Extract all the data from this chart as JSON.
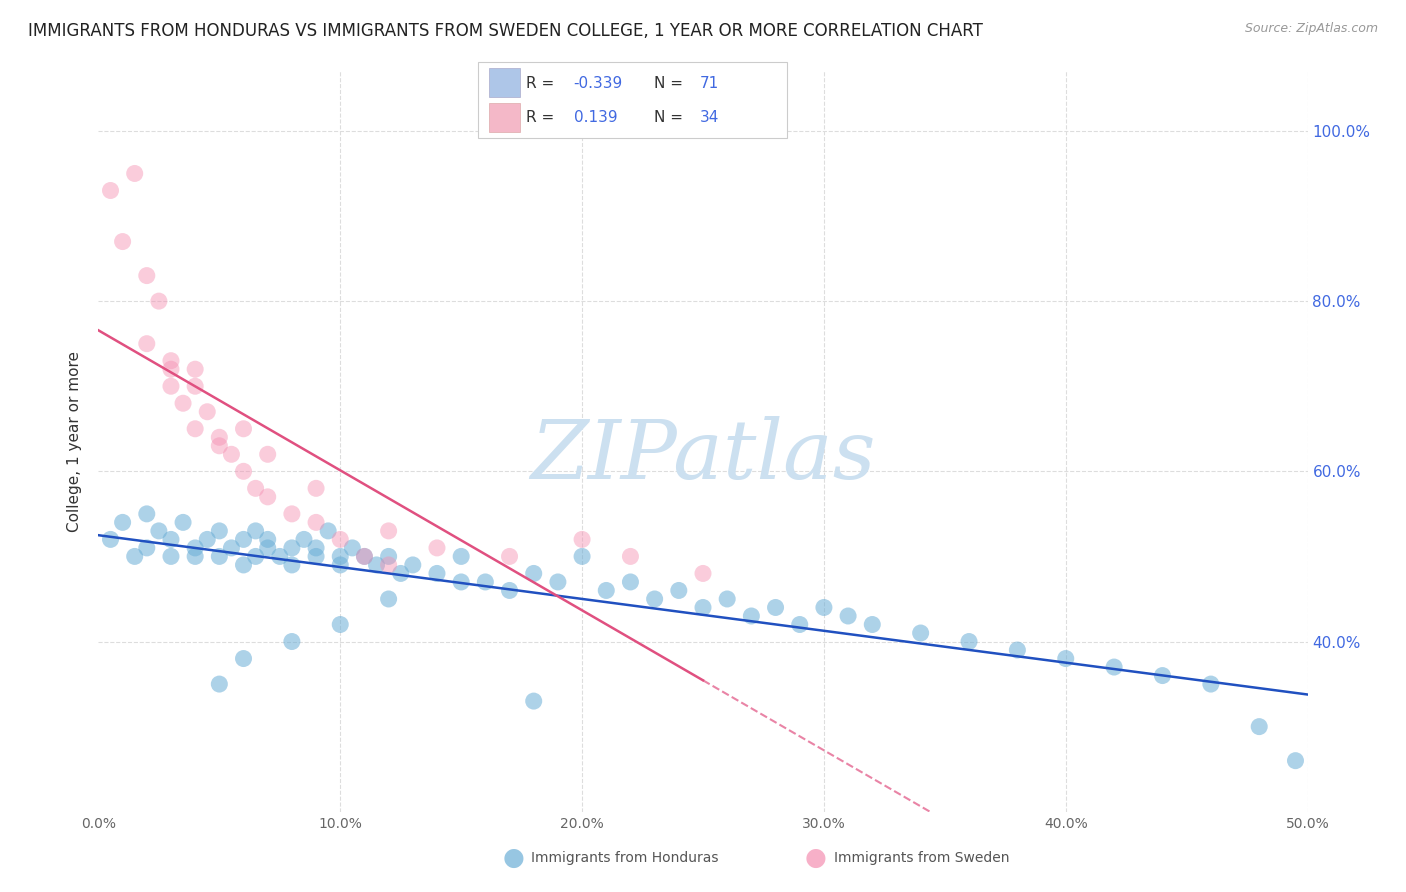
{
  "title": "IMMIGRANTS FROM HONDURAS VS IMMIGRANTS FROM SWEDEN COLLEGE, 1 YEAR OR MORE CORRELATION CHART",
  "source": "Source: ZipAtlas.com",
  "ylabel": "College, 1 year or more",
  "xlim": [
    0.0,
    0.5
  ],
  "ylim": [
    0.2,
    1.07
  ],
  "ytick_positions": [
    0.4,
    0.6,
    0.8,
    1.0
  ],
  "ytick_labels": [
    "40.0%",
    "60.0%",
    "80.0%",
    "100.0%"
  ],
  "xtick_positions": [
    0.0,
    0.1,
    0.2,
    0.3,
    0.4,
    0.5
  ],
  "xtick_labels": [
    "0.0%",
    "10.0%",
    "20.0%",
    "30.0%",
    "40.0%",
    "50.0%"
  ],
  "background_color": "#ffffff",
  "grid_color": "#dddddd",
  "watermark_text": "ZIPatlas",
  "watermark_color": "#cce0f0",
  "scatter_blue": "#6baed6",
  "scatter_pink": "#f48fb1",
  "line_blue": "#2050c0",
  "line_pink": "#e05080",
  "legend_blue_fill": "#aec6e8",
  "legend_pink_fill": "#f4b8c8",
  "r_color": "#4169e1",
  "n_color": "#4169e1",
  "label_color": "#333333",
  "honduras_x": [
    0.005,
    0.01,
    0.015,
    0.02,
    0.02,
    0.025,
    0.03,
    0.03,
    0.035,
    0.04,
    0.04,
    0.045,
    0.05,
    0.05,
    0.055,
    0.06,
    0.06,
    0.065,
    0.065,
    0.07,
    0.07,
    0.075,
    0.08,
    0.08,
    0.085,
    0.09,
    0.09,
    0.095,
    0.1,
    0.1,
    0.105,
    0.11,
    0.115,
    0.12,
    0.125,
    0.13,
    0.14,
    0.15,
    0.16,
    0.17,
    0.18,
    0.19,
    0.2,
    0.21,
    0.22,
    0.23,
    0.24,
    0.25,
    0.26,
    0.27,
    0.28,
    0.29,
    0.3,
    0.31,
    0.32,
    0.34,
    0.36,
    0.38,
    0.4,
    0.42,
    0.44,
    0.46,
    0.48,
    0.495,
    0.05,
    0.06,
    0.08,
    0.1,
    0.12,
    0.15,
    0.18
  ],
  "honduras_y": [
    0.52,
    0.54,
    0.5,
    0.51,
    0.55,
    0.53,
    0.52,
    0.5,
    0.54,
    0.51,
    0.5,
    0.52,
    0.5,
    0.53,
    0.51,
    0.52,
    0.49,
    0.53,
    0.5,
    0.51,
    0.52,
    0.5,
    0.49,
    0.51,
    0.52,
    0.5,
    0.51,
    0.53,
    0.5,
    0.49,
    0.51,
    0.5,
    0.49,
    0.5,
    0.48,
    0.49,
    0.48,
    0.5,
    0.47,
    0.46,
    0.48,
    0.47,
    0.5,
    0.46,
    0.47,
    0.45,
    0.46,
    0.44,
    0.45,
    0.43,
    0.44,
    0.42,
    0.44,
    0.43,
    0.42,
    0.41,
    0.4,
    0.39,
    0.38,
    0.37,
    0.36,
    0.35,
    0.3,
    0.26,
    0.35,
    0.38,
    0.4,
    0.42,
    0.45,
    0.47,
    0.33
  ],
  "sweden_x": [
    0.005,
    0.01,
    0.015,
    0.02,
    0.02,
    0.025,
    0.03,
    0.03,
    0.035,
    0.04,
    0.04,
    0.045,
    0.05,
    0.055,
    0.06,
    0.065,
    0.07,
    0.08,
    0.09,
    0.1,
    0.11,
    0.12,
    0.14,
    0.17,
    0.2,
    0.22,
    0.25,
    0.03,
    0.04,
    0.05,
    0.06,
    0.07,
    0.09,
    0.12
  ],
  "sweden_y": [
    0.93,
    0.87,
    0.95,
    0.83,
    0.75,
    0.8,
    0.73,
    0.7,
    0.68,
    0.72,
    0.65,
    0.67,
    0.63,
    0.62,
    0.6,
    0.58,
    0.57,
    0.55,
    0.54,
    0.52,
    0.5,
    0.49,
    0.51,
    0.5,
    0.52,
    0.5,
    0.48,
    0.72,
    0.7,
    0.64,
    0.65,
    0.62,
    0.58,
    0.53
  ]
}
